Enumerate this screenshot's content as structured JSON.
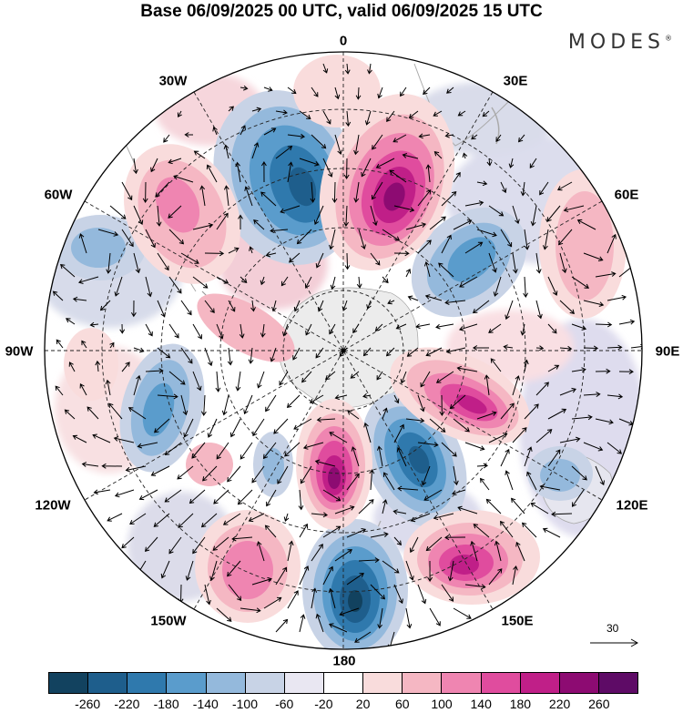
{
  "title": "Base 06/09/2025 00 UTC, valid 06/09/2025 15 UTC",
  "brand": "MODES",
  "brand_mark": "®",
  "longitude_labels": {
    "lon_0": "0",
    "lon_30e": "30E",
    "lon_60e": "60E",
    "lon_90e": "90E",
    "lon_120e": "120E",
    "lon_150e": "150E",
    "lon_180": "180",
    "lon_150w": "150W",
    "lon_120w": "120W",
    "lon_90w": "90W",
    "lon_60w": "60W",
    "lon_30w": "30W"
  },
  "wind_scale_label": "30",
  "colorbar": {
    "ticks": [
      "-260",
      "-220",
      "-180",
      "-140",
      "-100",
      "-60",
      "-20",
      "20",
      "60",
      "100",
      "140",
      "180",
      "220",
      "260"
    ],
    "colors": [
      "#12425f",
      "#1e5e8c",
      "#2f79ad",
      "#5a9ccc",
      "#94b9dc",
      "#c8d3e6",
      "#e9e7f2",
      "#ffffff",
      "#f9dcdc",
      "#f5b7c3",
      "#ef85b1",
      "#e04c9e",
      "#c01f88",
      "#8d0b72",
      "#5e0b66"
    ]
  }
}
